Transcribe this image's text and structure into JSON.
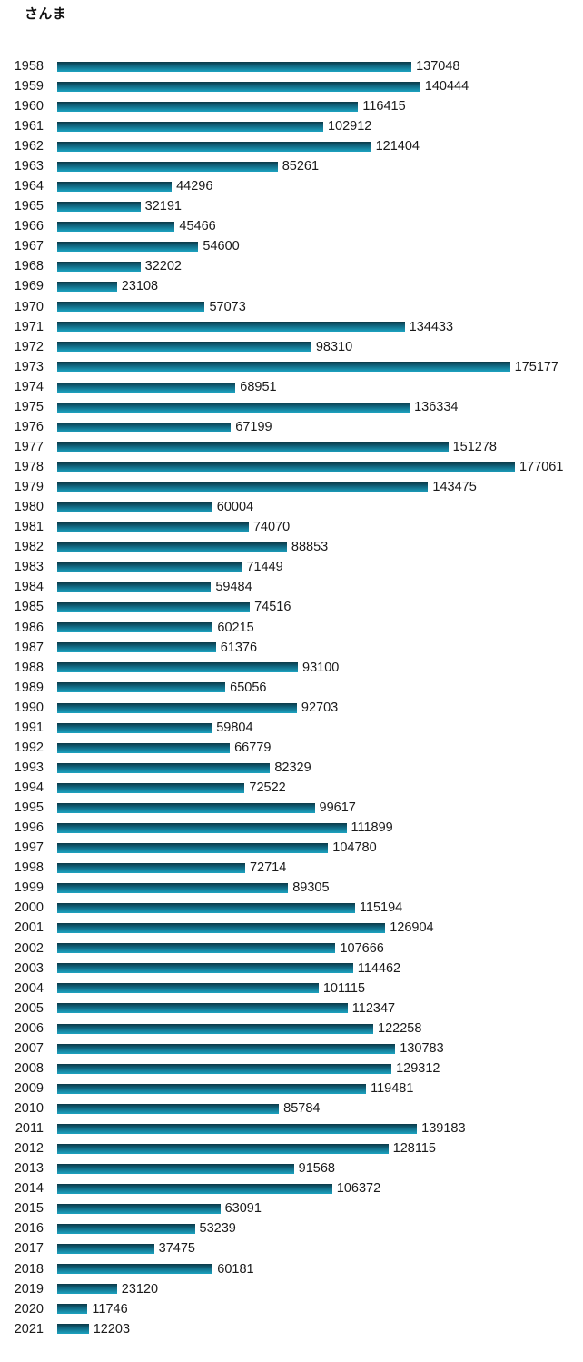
{
  "chart_data": {
    "type": "bar",
    "orientation": "horizontal",
    "title": "さんま",
    "xlabel": "",
    "ylabel": "",
    "categories": [
      "1958",
      "1959",
      "1960",
      "1961",
      "1962",
      "1963",
      "1964",
      "1965",
      "1966",
      "1967",
      "1968",
      "1969",
      "1970",
      "1971",
      "1972",
      "1973",
      "1974",
      "1975",
      "1976",
      "1977",
      "1978",
      "1979",
      "1980",
      "1981",
      "1982",
      "1983",
      "1984",
      "1985",
      "1986",
      "1987",
      "1988",
      "1989",
      "1990",
      "1991",
      "1992",
      "1993",
      "1994",
      "1995",
      "1996",
      "1997",
      "1998",
      "1999",
      "2000",
      "2001",
      "2002",
      "2003",
      "2004",
      "2005",
      "2006",
      "2007",
      "2008",
      "2009",
      "2010",
      "2011",
      "2012",
      "2013",
      "2014",
      "2015",
      "2016",
      "2017",
      "2018",
      "2019",
      "2020",
      "2021"
    ],
    "values": [
      137048,
      140444,
      116415,
      102912,
      121404,
      85261,
      44296,
      32191,
      45466,
      54600,
      32202,
      23108,
      57073,
      134433,
      98310,
      175177,
      68951,
      136334,
      67199,
      151278,
      177061,
      143475,
      60004,
      74070,
      88853,
      71449,
      59484,
      74516,
      60215,
      61376,
      93100,
      65056,
      92703,
      59804,
      66779,
      82329,
      72522,
      99617,
      111899,
      104780,
      72714,
      89305,
      115194,
      126904,
      107666,
      114462,
      101115,
      112347,
      122258,
      130783,
      129312,
      119481,
      85784,
      139183,
      128115,
      91568,
      106372,
      63091,
      53239,
      37475,
      60181,
      23120,
      11746,
      12203
    ],
    "xlim": [
      0,
      177061
    ],
    "grid": false,
    "legend": false,
    "value_labels": true,
    "colors": {
      "bar_gradient_top": "#0b3947",
      "bar_gradient_mid": "#116b85",
      "bar_gradient_bottom": "#1da3c0",
      "text": "#1a1a1a",
      "background": "#ffffff"
    }
  }
}
